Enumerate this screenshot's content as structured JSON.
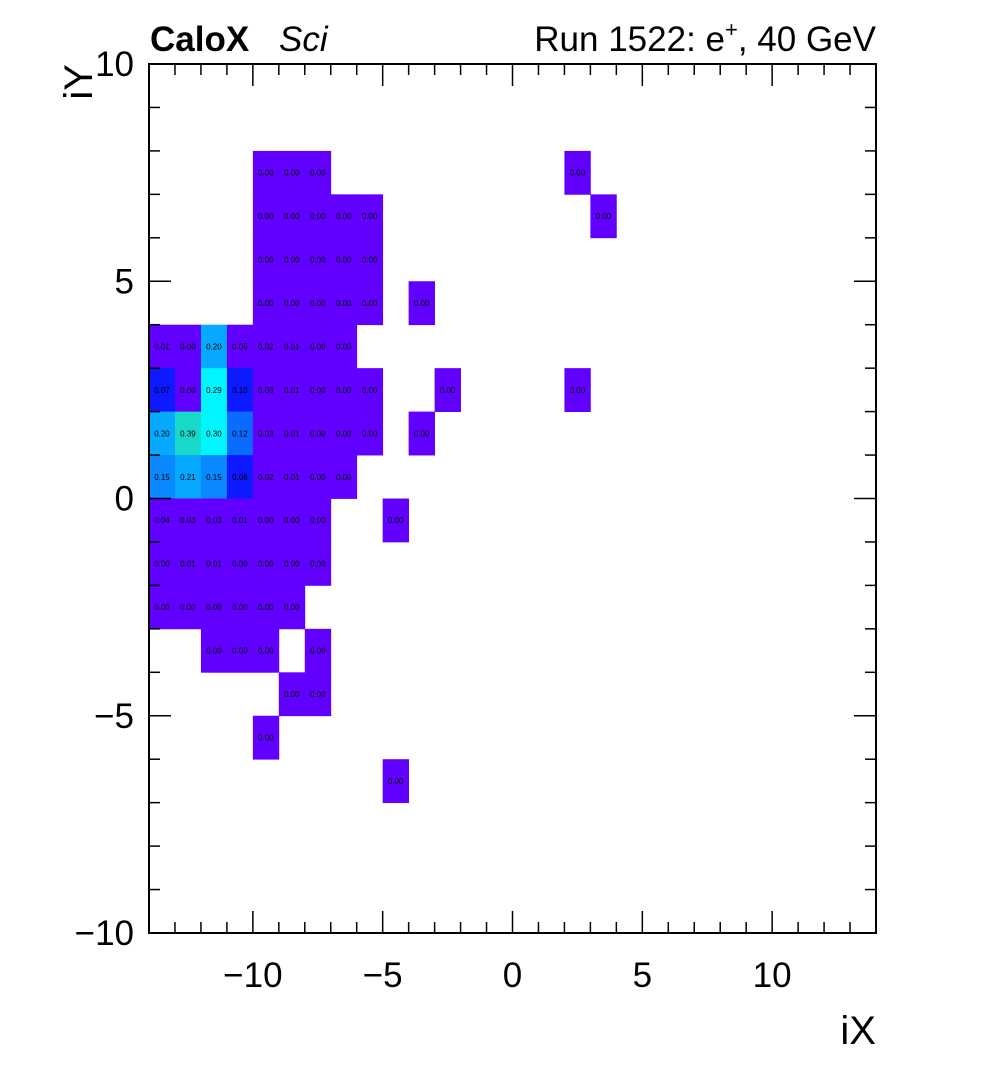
{
  "header": {
    "experiment": "CaloX",
    "tag": "Sci",
    "run_prefix": "Run 1522: e",
    "run_particle_charge": "+",
    "run_suffix": ", 40 GeV"
  },
  "chart_data": {
    "type": "heatmap",
    "xlabel": "iX",
    "ylabel": "iY",
    "xlim": [
      -14,
      14
    ],
    "ylim": [
      -10,
      10
    ],
    "x_ticks": [
      -10,
      -5,
      0,
      5,
      10
    ],
    "y_ticks": [
      -10,
      -5,
      0,
      5,
      10
    ],
    "x_tick_labels": [
      "−10",
      "−5",
      "0",
      "5",
      "10"
    ],
    "y_tick_labels": [
      "−10",
      "−5",
      "0",
      "5",
      "10"
    ],
    "grid": false,
    "colors": {
      "low": "#6100ff",
      "blue": "#0d1aff",
      "mid_blue": "#0a6bff",
      "azure": "#0a88ff",
      "sky": "#06a9ff",
      "cyan": "#00f5ff",
      "teal": "#18d9c8"
    },
    "cells": [
      {
        "ix": -10,
        "iy": 7,
        "value": 0.0,
        "label": "0.00"
      },
      {
        "ix": -9,
        "iy": 7,
        "value": 0.0,
        "label": "0.00"
      },
      {
        "ix": -8,
        "iy": 7,
        "value": 0.0,
        "label": "0.00"
      },
      {
        "ix": 2,
        "iy": 7,
        "value": 0.0,
        "label": "0.00"
      },
      {
        "ix": -10,
        "iy": 6,
        "value": 0.0,
        "label": "0.00"
      },
      {
        "ix": -9,
        "iy": 6,
        "value": 0.0,
        "label": "0.00"
      },
      {
        "ix": -8,
        "iy": 6,
        "value": 0.0,
        "label": "0.00"
      },
      {
        "ix": -7,
        "iy": 6,
        "value": 0.0,
        "label": "0.00"
      },
      {
        "ix": -6,
        "iy": 6,
        "value": 0.0,
        "label": "0.00"
      },
      {
        "ix": 3,
        "iy": 6,
        "value": 0.0,
        "label": "0.00"
      },
      {
        "ix": -10,
        "iy": 5,
        "value": 0.0,
        "label": "0.00"
      },
      {
        "ix": -9,
        "iy": 5,
        "value": 0.0,
        "label": "0.00"
      },
      {
        "ix": -8,
        "iy": 5,
        "value": 0.0,
        "label": "0.00"
      },
      {
        "ix": -7,
        "iy": 5,
        "value": 0.0,
        "label": "0.00"
      },
      {
        "ix": -6,
        "iy": 5,
        "value": 0.0,
        "label": "0.00"
      },
      {
        "ix": -10,
        "iy": 4,
        "value": 0.0,
        "label": "0.00"
      },
      {
        "ix": -9,
        "iy": 4,
        "value": 0.0,
        "label": "0.00"
      },
      {
        "ix": -8,
        "iy": 4,
        "value": 0.0,
        "label": "0.00"
      },
      {
        "ix": -7,
        "iy": 4,
        "value": 0.0,
        "label": "0.00"
      },
      {
        "ix": -6,
        "iy": 4,
        "value": 0.0,
        "label": "0.00"
      },
      {
        "ix": -4,
        "iy": 4,
        "value": 0.0,
        "label": "0.00"
      },
      {
        "ix": -14,
        "iy": 3,
        "value": 0.01,
        "label": "0.01"
      },
      {
        "ix": -13,
        "iy": 3,
        "value": 0.0,
        "label": "0.00"
      },
      {
        "ix": -12,
        "iy": 3,
        "value": 0.2,
        "label": "0.20"
      },
      {
        "ix": -11,
        "iy": 3,
        "value": 0.05,
        "label": "0.05"
      },
      {
        "ix": -10,
        "iy": 3,
        "value": 0.02,
        "label": "0.02"
      },
      {
        "ix": -9,
        "iy": 3,
        "value": 0.01,
        "label": "0.01"
      },
      {
        "ix": -8,
        "iy": 3,
        "value": 0.0,
        "label": "0.00"
      },
      {
        "ix": -7,
        "iy": 3,
        "value": 0.0,
        "label": "0.00"
      },
      {
        "ix": -14,
        "iy": 2,
        "value": 0.07,
        "label": "0.07"
      },
      {
        "ix": -13,
        "iy": 2,
        "value": 0.0,
        "label": "0.00"
      },
      {
        "ix": -12,
        "iy": 2,
        "value": 0.29,
        "label": "0.29"
      },
      {
        "ix": -11,
        "iy": 2,
        "value": 0.1,
        "label": "0.10"
      },
      {
        "ix": -10,
        "iy": 2,
        "value": 0.03,
        "label": "0.03"
      },
      {
        "ix": -9,
        "iy": 2,
        "value": 0.01,
        "label": "0.01"
      },
      {
        "ix": -8,
        "iy": 2,
        "value": 0.0,
        "label": "0.00"
      },
      {
        "ix": -7,
        "iy": 2,
        "value": 0.0,
        "label": "0.00"
      },
      {
        "ix": -6,
        "iy": 2,
        "value": 0.0,
        "label": "0.00"
      },
      {
        "ix": -3,
        "iy": 2,
        "value": 0.0,
        "label": "0.00"
      },
      {
        "ix": 2,
        "iy": 2,
        "value": 0.0,
        "label": "0.00"
      },
      {
        "ix": -14,
        "iy": 1,
        "value": 0.2,
        "label": "0.20"
      },
      {
        "ix": -13,
        "iy": 1,
        "value": 0.39,
        "label": "0.39"
      },
      {
        "ix": -12,
        "iy": 1,
        "value": 0.3,
        "label": "0.30"
      },
      {
        "ix": -11,
        "iy": 1,
        "value": 0.12,
        "label": "0.12"
      },
      {
        "ix": -10,
        "iy": 1,
        "value": 0.03,
        "label": "0.03"
      },
      {
        "ix": -9,
        "iy": 1,
        "value": 0.01,
        "label": "0.01"
      },
      {
        "ix": -8,
        "iy": 1,
        "value": 0.0,
        "label": "0.00"
      },
      {
        "ix": -7,
        "iy": 1,
        "value": 0.0,
        "label": "0.00"
      },
      {
        "ix": -6,
        "iy": 1,
        "value": 0.0,
        "label": "0.00"
      },
      {
        "ix": -4,
        "iy": 1,
        "value": 0.0,
        "label": "0.00"
      },
      {
        "ix": -14,
        "iy": 0,
        "value": 0.15,
        "label": "0.15"
      },
      {
        "ix": -13,
        "iy": 0,
        "value": 0.21,
        "label": "0.21"
      },
      {
        "ix": -12,
        "iy": 0,
        "value": 0.15,
        "label": "0.15"
      },
      {
        "ix": -11,
        "iy": 0,
        "value": 0.06,
        "label": "0.06"
      },
      {
        "ix": -10,
        "iy": 0,
        "value": 0.02,
        "label": "0.02"
      },
      {
        "ix": -9,
        "iy": 0,
        "value": 0.01,
        "label": "0.01"
      },
      {
        "ix": -8,
        "iy": 0,
        "value": 0.0,
        "label": "0.00"
      },
      {
        "ix": -7,
        "iy": 0,
        "value": 0.0,
        "label": "0.00"
      },
      {
        "ix": -14,
        "iy": -1,
        "value": 0.04,
        "label": "0.04"
      },
      {
        "ix": -13,
        "iy": -1,
        "value": 0.03,
        "label": "0.03"
      },
      {
        "ix": -12,
        "iy": -1,
        "value": 0.03,
        "label": "0.03"
      },
      {
        "ix": -11,
        "iy": -1,
        "value": 0.01,
        "label": "0.01"
      },
      {
        "ix": -10,
        "iy": -1,
        "value": 0.0,
        "label": "0.00"
      },
      {
        "ix": -9,
        "iy": -1,
        "value": 0.0,
        "label": "0.00"
      },
      {
        "ix": -8,
        "iy": -1,
        "value": 0.0,
        "label": "0.00"
      },
      {
        "ix": -5,
        "iy": -1,
        "value": 0.0,
        "label": "0.00"
      },
      {
        "ix": -14,
        "iy": -2,
        "value": 0.0,
        "label": "0.00"
      },
      {
        "ix": -13,
        "iy": -2,
        "value": 0.01,
        "label": "0.01"
      },
      {
        "ix": -12,
        "iy": -2,
        "value": 0.01,
        "label": "0.01"
      },
      {
        "ix": -11,
        "iy": -2,
        "value": 0.0,
        "label": "0.00"
      },
      {
        "ix": -10,
        "iy": -2,
        "value": 0.0,
        "label": "0.00"
      },
      {
        "ix": -9,
        "iy": -2,
        "value": 0.0,
        "label": "0.00"
      },
      {
        "ix": -8,
        "iy": -2,
        "value": 0.0,
        "label": "0.00"
      },
      {
        "ix": -14,
        "iy": -3,
        "value": 0.0,
        "label": "0.00"
      },
      {
        "ix": -13,
        "iy": -3,
        "value": 0.0,
        "label": "0.00"
      },
      {
        "ix": -12,
        "iy": -3,
        "value": 0.0,
        "label": "0.00"
      },
      {
        "ix": -11,
        "iy": -3,
        "value": 0.0,
        "label": "0.00"
      },
      {
        "ix": -10,
        "iy": -3,
        "value": 0.0,
        "label": "0.00"
      },
      {
        "ix": -9,
        "iy": -3,
        "value": 0.0,
        "label": "0.00"
      },
      {
        "ix": -12,
        "iy": -4,
        "value": 0.0,
        "label": "0.00"
      },
      {
        "ix": -11,
        "iy": -4,
        "value": 0.0,
        "label": "0.00"
      },
      {
        "ix": -10,
        "iy": -4,
        "value": 0.0,
        "label": "0.00"
      },
      {
        "ix": -8,
        "iy": -4,
        "value": 0.0,
        "label": "0.00"
      },
      {
        "ix": -9,
        "iy": -5,
        "value": 0.0,
        "label": "0.00"
      },
      {
        "ix": -8,
        "iy": -5,
        "value": 0.0,
        "label": "0.00"
      },
      {
        "ix": -10,
        "iy": -6,
        "value": 0.0,
        "label": "0.00"
      },
      {
        "ix": -5,
        "iy": -7,
        "value": 0.0,
        "label": "0.00"
      }
    ]
  }
}
